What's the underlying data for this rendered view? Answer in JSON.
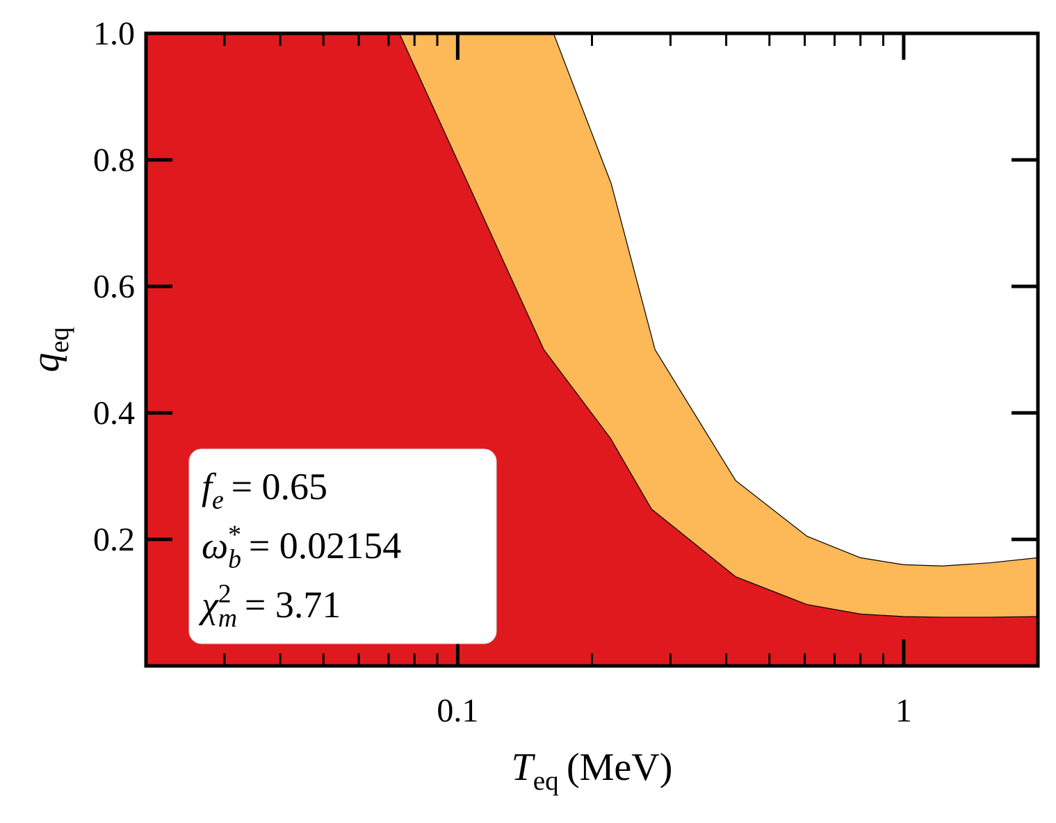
{
  "chart_data": {
    "type": "area",
    "xscale": "log",
    "xlim": [
      0.02,
      2
    ],
    "ylim": [
      0,
      1
    ],
    "xticks": [
      0.1,
      1
    ],
    "xminorticks": [
      0.02,
      0.03,
      0.04,
      0.05,
      0.06,
      0.07,
      0.08,
      0.09,
      0.2,
      0.3,
      0.4,
      0.5,
      0.6,
      0.7,
      0.8,
      0.9,
      2
    ],
    "yticks": [
      0.2,
      0.4,
      0.6,
      0.8,
      {
        "value": 1,
        "label": "1.0"
      }
    ],
    "xlabel": {
      "symbol": "T",
      "sub": "eq",
      "text": "(MeV)"
    },
    "ylabel": {
      "symbol": "q",
      "sub": "eq"
    },
    "series": [
      {
        "color": "#fdb857",
        "x": [
          0.02,
          0.164,
          0.221,
          0.277,
          0.42,
          0.607,
          0.8,
          1.0,
          1.22,
          1.56,
          2
        ],
        "values": [
          1.0,
          1.0,
          0.762,
          0.5,
          0.293,
          0.205,
          0.171,
          0.16,
          0.158,
          0.163,
          0.171
        ]
      },
      {
        "color": "#e0191e",
        "x": [
          0.02,
          0.074,
          0.156,
          0.22,
          0.272,
          0.42,
          0.607,
          0.8,
          1.0,
          1.22,
          1.56,
          2
        ],
        "values": [
          1.0,
          1.0,
          0.5,
          0.36,
          0.248,
          0.141,
          0.097,
          0.082,
          0.078,
          0.077,
          0.077,
          0.078
        ]
      }
    ],
    "annotations": [
      {
        "symbol": "f",
        "sub": "e",
        "text": "= 0.65"
      },
      {
        "symbol": "ω",
        "sub": "b",
        "sup": "*",
        "text": "= 0.02154"
      },
      {
        "symbol": "χ",
        "sub": "m",
        "sup": "2",
        "text": "= 3.71"
      }
    ]
  }
}
